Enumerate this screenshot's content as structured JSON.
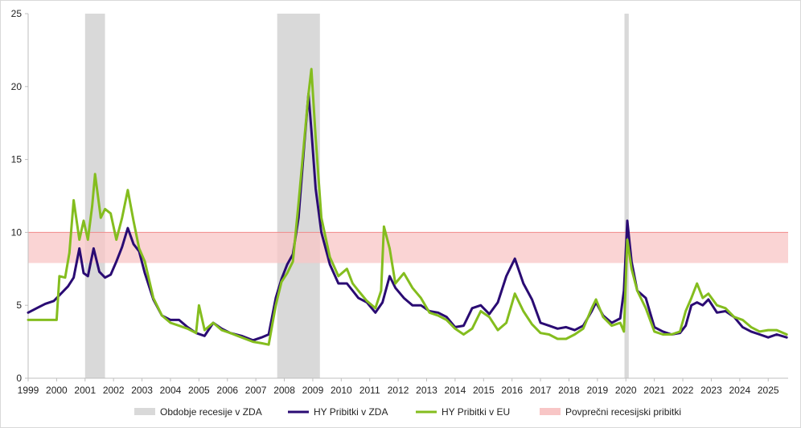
{
  "chart_data": {
    "type": "line",
    "title": "",
    "xlabel": "",
    "ylabel": "",
    "ylim": [
      0,
      25
    ],
    "xlim": [
      1999.0,
      2025.7
    ],
    "y_ticks": [
      0,
      5,
      10,
      15,
      20,
      25
    ],
    "x_ticks": [
      "1999",
      "2000",
      "2001",
      "2002",
      "2003",
      "2004",
      "2005",
      "2006",
      "2007",
      "2008",
      "2009",
      "2010",
      "2011",
      "2012",
      "2013",
      "2014",
      "2015",
      "2016",
      "2017",
      "2018",
      "2019",
      "2020",
      "2021",
      "2022",
      "2023",
      "2024",
      "2025"
    ],
    "grid": false,
    "legend_position": "bottom",
    "recessions": [
      {
        "start": 2001.0,
        "end": 2001.7
      },
      {
        "start": 2007.75,
        "end": 2009.25
      },
      {
        "start": 2019.95,
        "end": 2020.1
      }
    ],
    "average_recession_band": {
      "low": 7.9,
      "high": 10.0
    },
    "series": [
      {
        "name": "HY Pribitki v ZDA",
        "x": [
          1999.0,
          1999.3,
          1999.6,
          1999.9,
          2000.2,
          2000.4,
          2000.6,
          2000.8,
          2000.95,
          2001.1,
          2001.3,
          2001.5,
          2001.7,
          2001.9,
          2002.1,
          2002.3,
          2002.5,
          2002.7,
          2002.9,
          2003.1,
          2003.4,
          2003.7,
          2004.0,
          2004.3,
          2004.6,
          2004.9,
          2005.2,
          2005.5,
          2005.8,
          2006.1,
          2006.5,
          2006.9,
          2007.2,
          2007.45,
          2007.7,
          2007.9,
          2008.1,
          2008.3,
          2008.5,
          2008.7,
          2008.85,
          2008.95,
          2009.1,
          2009.3,
          2009.6,
          2009.9,
          2010.2,
          2010.4,
          2010.6,
          2010.9,
          2011.2,
          2011.45,
          2011.7,
          2011.9,
          2012.2,
          2012.5,
          2012.8,
          2013.1,
          2013.4,
          2013.7,
          2014.0,
          2014.3,
          2014.6,
          2014.9,
          2015.2,
          2015.5,
          2015.8,
          2016.1,
          2016.4,
          2016.7,
          2017.0,
          2017.3,
          2017.6,
          2017.9,
          2018.2,
          2018.5,
          2018.8,
          2018.95,
          2019.2,
          2019.5,
          2019.8,
          2019.93,
          2020.05,
          2020.2,
          2020.4,
          2020.7,
          2021.0,
          2021.3,
          2021.6,
          2021.9,
          2022.1,
          2022.3,
          2022.5,
          2022.7,
          2022.9,
          2023.2,
          2023.5,
          2023.8,
          2024.1,
          2024.4,
          2024.7,
          2025.0,
          2025.3,
          2025.65
        ],
        "values": [
          4.5,
          4.8,
          5.1,
          5.3,
          5.9,
          6.3,
          6.9,
          8.9,
          7.2,
          7.0,
          8.9,
          7.3,
          6.9,
          7.1,
          8.0,
          9.0,
          10.3,
          9.2,
          8.7,
          7.2,
          5.4,
          4.3,
          4.0,
          4.0,
          3.5,
          3.1,
          2.9,
          3.8,
          3.4,
          3.1,
          2.9,
          2.6,
          2.8,
          3.0,
          5.5,
          6.8,
          7.8,
          8.5,
          11.0,
          16.0,
          19.5,
          17.0,
          13.0,
          10.0,
          7.8,
          6.5,
          6.5,
          6.0,
          5.5,
          5.2,
          4.5,
          5.2,
          7.0,
          6.2,
          5.5,
          5.0,
          5.0,
          4.6,
          4.5,
          4.2,
          3.5,
          3.6,
          4.8,
          5.0,
          4.4,
          5.2,
          7.0,
          8.2,
          6.5,
          5.4,
          3.8,
          3.6,
          3.4,
          3.5,
          3.3,
          3.6,
          4.6,
          5.2,
          4.3,
          3.8,
          4.1,
          6.0,
          10.8,
          8.0,
          6.0,
          5.5,
          3.5,
          3.2,
          3.0,
          3.1,
          3.6,
          5.0,
          5.2,
          5.0,
          5.4,
          4.5,
          4.6,
          4.2,
          3.5,
          3.2,
          3.0,
          2.8,
          3.0,
          2.8
        ]
      },
      {
        "name": "HY Pribitki v EU",
        "x": [
          1999.0,
          1999.5,
          2000.0,
          2000.1,
          2000.3,
          2000.45,
          2000.6,
          2000.8,
          2000.95,
          2001.1,
          2001.25,
          2001.35,
          2001.55,
          2001.7,
          2001.9,
          2002.1,
          2002.3,
          2002.5,
          2002.7,
          2002.9,
          2003.1,
          2003.4,
          2003.7,
          2004.0,
          2004.3,
          2004.6,
          2004.9,
          2005.0,
          2005.2,
          2005.5,
          2005.8,
          2006.1,
          2006.5,
          2006.9,
          2007.2,
          2007.45,
          2007.7,
          2007.9,
          2008.1,
          2008.3,
          2008.5,
          2008.7,
          2008.85,
          2008.95,
          2009.1,
          2009.3,
          2009.6,
          2009.9,
          2010.2,
          2010.4,
          2010.6,
          2010.9,
          2011.2,
          2011.4,
          2011.5,
          2011.7,
          2011.9,
          2012.2,
          2012.5,
          2012.8,
          2013.1,
          2013.4,
          2013.7,
          2014.0,
          2014.3,
          2014.6,
          2014.9,
          2015.2,
          2015.5,
          2015.8,
          2016.1,
          2016.4,
          2016.7,
          2017.0,
          2017.3,
          2017.6,
          2017.9,
          2018.2,
          2018.5,
          2018.8,
          2018.95,
          2019.2,
          2019.5,
          2019.8,
          2019.93,
          2020.05,
          2020.2,
          2020.4,
          2020.7,
          2021.0,
          2021.3,
          2021.6,
          2021.9,
          2022.1,
          2022.3,
          2022.5,
          2022.7,
          2022.9,
          2023.2,
          2023.5,
          2023.8,
          2024.1,
          2024.4,
          2024.7,
          2025.0,
          2025.3,
          2025.65
        ],
        "values": [
          4.0,
          4.0,
          4.0,
          7.0,
          6.9,
          8.6,
          12.2,
          9.5,
          10.8,
          9.5,
          11.8,
          14.0,
          11.0,
          11.6,
          11.3,
          9.5,
          11.0,
          12.9,
          10.8,
          8.9,
          8.0,
          5.5,
          4.3,
          3.8,
          3.6,
          3.4,
          3.1,
          5.0,
          3.3,
          3.8,
          3.3,
          3.1,
          2.8,
          2.5,
          2.4,
          2.3,
          5.0,
          6.6,
          7.2,
          8.0,
          12.0,
          16.3,
          19.5,
          21.2,
          16.5,
          11.0,
          8.3,
          7.0,
          7.5,
          6.5,
          6.0,
          5.3,
          4.8,
          6.0,
          10.4,
          8.9,
          6.5,
          7.2,
          6.2,
          5.5,
          4.5,
          4.3,
          4.0,
          3.4,
          3.0,
          3.4,
          4.6,
          4.2,
          3.3,
          3.8,
          5.8,
          4.6,
          3.7,
          3.1,
          3.0,
          2.7,
          2.7,
          3.0,
          3.4,
          4.8,
          5.4,
          4.2,
          3.6,
          3.8,
          3.2,
          9.5,
          7.5,
          6.0,
          4.8,
          3.2,
          3.0,
          3.0,
          3.2,
          4.6,
          5.5,
          6.5,
          5.5,
          5.8,
          5.0,
          4.8,
          4.2,
          4.0,
          3.5,
          3.2,
          3.3,
          3.3,
          3.0
        ]
      }
    ],
    "legend": [
      {
        "label": "Obdobje recesije v ZDA",
        "color": "#d9d9d9",
        "kind": "patch"
      },
      {
        "label": "HY Pribitki v ZDA",
        "color": "#2a0b73",
        "kind": "line"
      },
      {
        "label": "HY Pribitki v EU",
        "color": "#84bd1e",
        "kind": "line"
      },
      {
        "label": "Povprečni recesijski pribitki",
        "color": "#f8c6c6",
        "kind": "patch"
      }
    ],
    "colors": {
      "recession": "#d9d9d9",
      "us_line": "#2a0b73",
      "eu_line": "#84bd1e",
      "band": "#f8c6c6",
      "band_edge": "#f08a8a",
      "axis": "#bfbfbf"
    }
  }
}
